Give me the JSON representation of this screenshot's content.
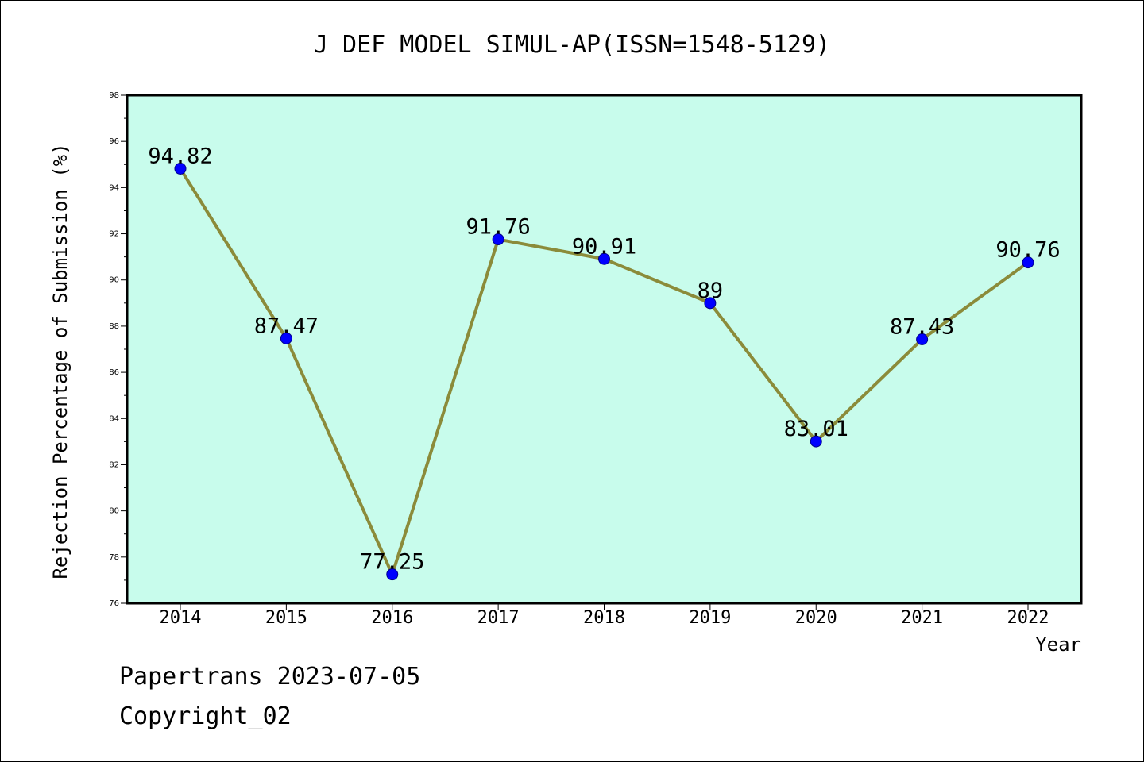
{
  "chart_data": {
    "type": "line",
    "title": "J DEF MODEL SIMUL-AP(ISSN=1548-5129)",
    "xlabel": "Year",
    "ylabel": "Rejection Percentage of Submission (%)",
    "categories": [
      "2014",
      "2015",
      "2016",
      "2017",
      "2018",
      "2019",
      "2020",
      "2021",
      "2022"
    ],
    "values": [
      94.82,
      87.47,
      77.25,
      91.76,
      90.91,
      89,
      83.01,
      87.43,
      90.76
    ],
    "data_labels": [
      "94.82",
      "87.47",
      "77.25",
      "91.76",
      "90.91",
      "89",
      "83.01",
      "87.43",
      "90.76"
    ],
    "ylim": [
      76,
      98
    ],
    "yticks": [
      76,
      78,
      80,
      82,
      84,
      86,
      88,
      90,
      92,
      94,
      96,
      98
    ],
    "grid": false,
    "legend": "none",
    "colors": {
      "plot_background": "#c8fcec",
      "line": "#8b8b3a",
      "marker": "#0000ff",
      "marker_edge": "#00008b"
    }
  },
  "footer": {
    "line1": "Papertrans 2023-07-05",
    "line2": "Copyright_02"
  }
}
